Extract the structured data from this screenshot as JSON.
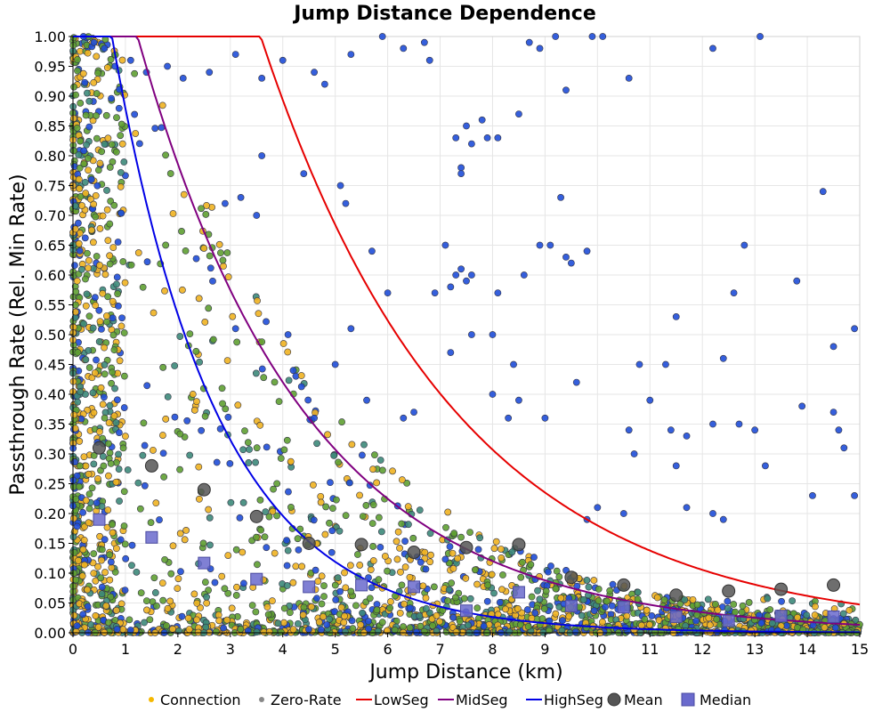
{
  "chart_data": {
    "type": "scatter",
    "title": "Jump Distance Dependence",
    "xlabel": "Jump Distance (km)",
    "ylabel": "Passthrough Rate (Rel. Min Rate)",
    "xlim": [
      0,
      15
    ],
    "ylim": [
      0,
      1
    ],
    "x_ticks": [
      "0",
      "1",
      "2",
      "3",
      "4",
      "5",
      "6",
      "7",
      "8",
      "9",
      "10",
      "11",
      "12",
      "13",
      "14",
      "15"
    ],
    "y_ticks": [
      "0.00",
      "0.05",
      "0.10",
      "0.15",
      "0.20",
      "0.25",
      "0.30",
      "0.35",
      "0.40",
      "0.45",
      "0.50",
      "0.55",
      "0.60",
      "0.65",
      "0.70",
      "0.75",
      "0.80",
      "0.85",
      "0.90",
      "0.95",
      "1.00"
    ],
    "grid": true,
    "legend_position": "bottom",
    "legend": [
      {
        "key": "connection",
        "label": "Connection",
        "marker": "dot",
        "color": "#f5b800"
      },
      {
        "key": "zero_rate",
        "label": "Zero-Rate",
        "marker": "dot",
        "color": "#888888"
      },
      {
        "key": "lowseg",
        "label": "LowSeg",
        "marker": "line",
        "color": "#e60000"
      },
      {
        "key": "midseg",
        "label": "MidSeg",
        "marker": "line",
        "color": "#800080"
      },
      {
        "key": "highseg",
        "label": "HighSeg",
        "marker": "line",
        "color": "#0000e6"
      },
      {
        "key": "mean",
        "label": "Mean",
        "marker": "circle",
        "color": "#555555"
      },
      {
        "key": "median",
        "label": "Median",
        "marker": "square",
        "color": "#6a6acd"
      }
    ],
    "curves": [
      {
        "name": "LowSeg",
        "color": "#e60000",
        "formula": "min(1, 2.6*exp(-0.267*x))",
        "points": [
          [
            3,
            1.0
          ],
          [
            4,
            0.87
          ],
          [
            5,
            0.68
          ],
          [
            6,
            0.52
          ],
          [
            7,
            0.4
          ],
          [
            8,
            0.31
          ],
          [
            9,
            0.23
          ],
          [
            10,
            0.17
          ],
          [
            11,
            0.14
          ],
          [
            12,
            0.11
          ],
          [
            13,
            0.085
          ],
          [
            14,
            0.065
          ],
          [
            15,
            0.048
          ]
        ]
      },
      {
        "name": "MidSeg",
        "color": "#800080",
        "formula": "min(1, 1.47*exp(-0.313*x))",
        "points": [
          [
            2,
            1.0
          ],
          [
            3,
            0.78
          ],
          [
            4,
            0.56
          ],
          [
            5,
            0.41
          ],
          [
            6,
            0.31
          ],
          [
            7,
            0.23
          ],
          [
            8,
            0.16
          ],
          [
            9,
            0.11
          ],
          [
            10,
            0.07
          ],
          [
            11,
            0.053
          ],
          [
            12,
            0.037
          ],
          [
            13,
            0.026
          ],
          [
            14,
            0.018
          ],
          [
            15,
            0.013
          ]
        ]
      },
      {
        "name": "HighSeg",
        "color": "#0000e6",
        "formula": "min(1, 1.45*exp(-0.5*x))",
        "points": [
          [
            1,
            0.95
          ],
          [
            2,
            0.54
          ],
          [
            3,
            0.32
          ],
          [
            4,
            0.195
          ],
          [
            5,
            0.12
          ],
          [
            6,
            0.073
          ],
          [
            7,
            0.045
          ],
          [
            8,
            0.027
          ],
          [
            9,
            0.017
          ],
          [
            10,
            0.01
          ],
          [
            11,
            0.006
          ],
          [
            12,
            0.004
          ],
          [
            13,
            0.002
          ],
          [
            14,
            0.001
          ],
          [
            15,
            0.001
          ]
        ]
      }
    ],
    "mean": [
      [
        0.5,
        0.31
      ],
      [
        1.5,
        0.28
      ],
      [
        2.5,
        0.24
      ],
      [
        3.5,
        0.195
      ],
      [
        4.5,
        0.15
      ],
      [
        5.5,
        0.148
      ],
      [
        6.5,
        0.135
      ],
      [
        7.5,
        0.143
      ],
      [
        8.5,
        0.148
      ],
      [
        9.5,
        0.093
      ],
      [
        10.5,
        0.08
      ],
      [
        11.5,
        0.063
      ],
      [
        12.5,
        0.07
      ],
      [
        13.5,
        0.073
      ],
      [
        14.5,
        0.08
      ]
    ],
    "median": [
      [
        0.5,
        0.19
      ],
      [
        1.5,
        0.16
      ],
      [
        2.5,
        0.117
      ],
      [
        3.5,
        0.09
      ],
      [
        4.5,
        0.077
      ],
      [
        5.5,
        0.08
      ],
      [
        6.5,
        0.077
      ],
      [
        7.5,
        0.037
      ],
      [
        8.5,
        0.068
      ],
      [
        9.5,
        0.045
      ],
      [
        10.5,
        0.043
      ],
      [
        11.5,
        0.027
      ],
      [
        12.5,
        0.02
      ],
      [
        13.5,
        0.028
      ],
      [
        14.5,
        0.027
      ]
    ],
    "scatter_colors": {
      "connection": "#f0b321",
      "zero_rate_green": "#5fa032",
      "zero_rate_teal": "#3d8a7a",
      "high_blue": "#1f4ed8"
    },
    "blue_outliers": [
      [
        0.2,
        1.0
      ],
      [
        0.4,
        0.99
      ],
      [
        0.6,
        0.98
      ],
      [
        0.8,
        0.95
      ],
      [
        1.1,
        0.96
      ],
      [
        1.4,
        0.94
      ],
      [
        1.8,
        0.95
      ],
      [
        2.1,
        0.93
      ],
      [
        2.6,
        0.94
      ],
      [
        3.1,
        0.97
      ],
      [
        3.6,
        0.93
      ],
      [
        4.0,
        0.96
      ],
      [
        4.6,
        0.94
      ],
      [
        4.8,
        0.92
      ],
      [
        5.3,
        0.97
      ],
      [
        5.9,
        1.0
      ],
      [
        6.3,
        0.98
      ],
      [
        6.7,
        0.99
      ],
      [
        6.8,
        0.96
      ],
      [
        8.5,
        0.87
      ],
      [
        8.7,
        0.99
      ],
      [
        8.9,
        0.98
      ],
      [
        9.2,
        1.0
      ],
      [
        9.4,
        0.91
      ],
      [
        9.9,
        1.0
      ],
      [
        10.1,
        1.0
      ],
      [
        10.6,
        0.93
      ],
      [
        12.2,
        0.98
      ],
      [
        13.1,
        1.0
      ],
      [
        7.3,
        0.83
      ],
      [
        7.6,
        0.82
      ],
      [
        7.8,
        0.86
      ],
      [
        7.9,
        0.83
      ],
      [
        8.1,
        0.83
      ],
      [
        7.4,
        0.78
      ],
      [
        7.4,
        0.77
      ],
      [
        7.5,
        0.85
      ],
      [
        3.6,
        0.8
      ],
      [
        4.4,
        0.77
      ],
      [
        5.1,
        0.75
      ],
      [
        5.2,
        0.72
      ],
      [
        3.2,
        0.73
      ],
      [
        2.9,
        0.72
      ],
      [
        3.5,
        0.7
      ],
      [
        7.1,
        0.65
      ],
      [
        7.3,
        0.6
      ],
      [
        7.4,
        0.61
      ],
      [
        7.6,
        0.6
      ],
      [
        7.5,
        0.59
      ],
      [
        6.9,
        0.57
      ],
      [
        7.2,
        0.58
      ],
      [
        6.0,
        0.57
      ],
      [
        5.7,
        0.64
      ],
      [
        8.1,
        0.57
      ],
      [
        8.6,
        0.6
      ],
      [
        8.9,
        0.65
      ],
      [
        9.1,
        0.65
      ],
      [
        9.4,
        0.63
      ],
      [
        9.5,
        0.62
      ],
      [
        9.8,
        0.64
      ],
      [
        9.3,
        0.73
      ],
      [
        12.6,
        0.57
      ],
      [
        12.8,
        0.65
      ],
      [
        13.8,
        0.59
      ],
      [
        14.3,
        0.74
      ],
      [
        14.9,
        0.51
      ],
      [
        11.5,
        0.53
      ],
      [
        12.4,
        0.46
      ],
      [
        14.5,
        0.48
      ],
      [
        11.3,
        0.45
      ],
      [
        10.8,
        0.45
      ],
      [
        11.0,
        0.39
      ],
      [
        10.6,
        0.34
      ],
      [
        11.4,
        0.34
      ],
      [
        11.7,
        0.33
      ],
      [
        11.5,
        0.28
      ],
      [
        10.7,
        0.3
      ],
      [
        13.9,
        0.38
      ],
      [
        14.1,
        0.23
      ],
      [
        14.5,
        0.37
      ],
      [
        14.6,
        0.34
      ],
      [
        13.2,
        0.28
      ],
      [
        13.0,
        0.34
      ],
      [
        12.7,
        0.35
      ],
      [
        12.2,
        0.35
      ],
      [
        10.0,
        0.21
      ],
      [
        9.8,
        0.19
      ],
      [
        10.5,
        0.2
      ],
      [
        11.7,
        0.21
      ],
      [
        12.2,
        0.2
      ],
      [
        12.4,
        0.19
      ],
      [
        14.7,
        0.31
      ],
      [
        14.9,
        0.23
      ],
      [
        7.6,
        0.5
      ],
      [
        7.2,
        0.47
      ],
      [
        8.0,
        0.5
      ],
      [
        8.4,
        0.45
      ],
      [
        8.3,
        0.36
      ],
      [
        8.5,
        0.39
      ],
      [
        8.0,
        0.4
      ],
      [
        9.0,
        0.36
      ],
      [
        9.6,
        0.42
      ],
      [
        6.3,
        0.36
      ],
      [
        6.5,
        0.37
      ],
      [
        5.0,
        0.45
      ],
      [
        4.2,
        0.44
      ],
      [
        4.6,
        0.36
      ],
      [
        5.6,
        0.39
      ],
      [
        5.3,
        0.51
      ],
      [
        4.1,
        0.5
      ],
      [
        3.1,
        0.51
      ]
    ]
  }
}
